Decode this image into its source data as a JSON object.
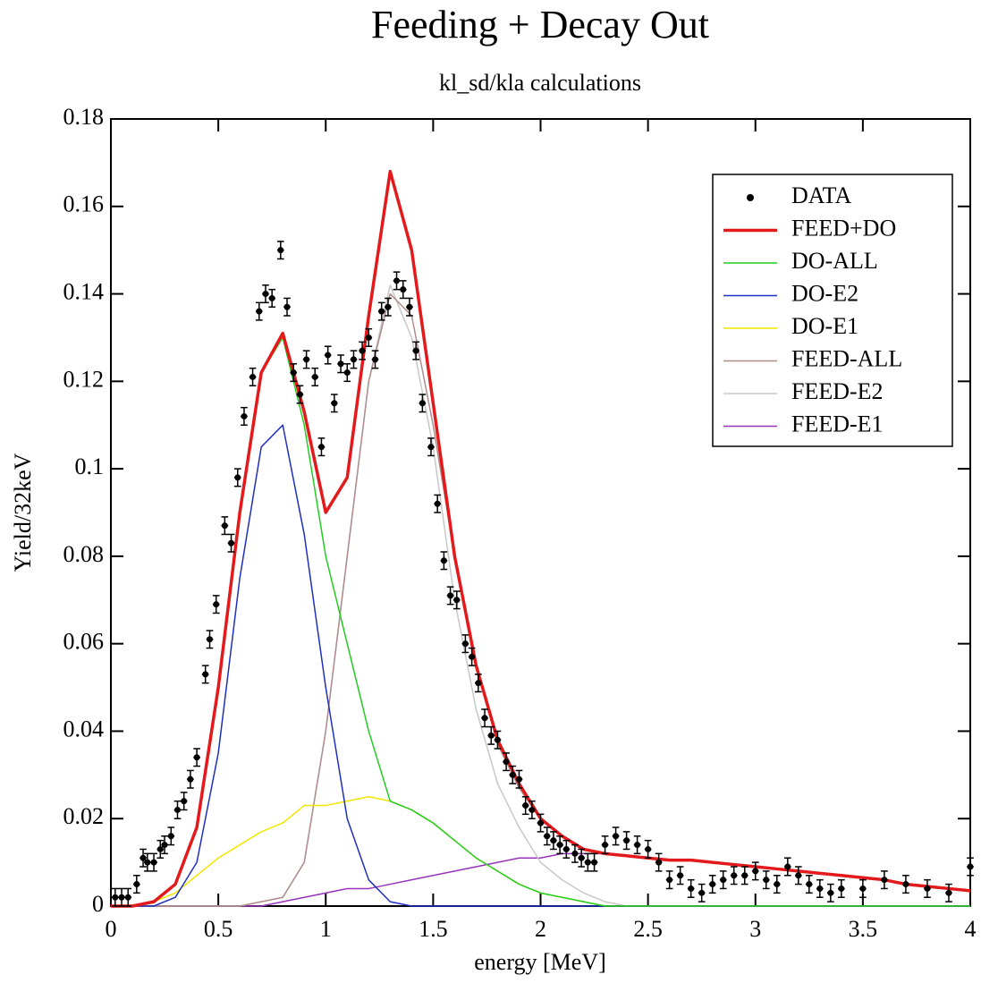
{
  "chart_data": {
    "type": "line",
    "title": "Feeding + Decay Out",
    "subtitle": "kl_sd/kla calculations",
    "xlabel": "energy [MeV]",
    "ylabel": "Yield/32keV",
    "xlim": [
      0,
      4
    ],
    "ylim": [
      0,
      0.18
    ],
    "xticks": [
      0,
      0.5,
      1,
      1.5,
      2,
      2.5,
      3,
      3.5,
      4
    ],
    "yticks": [
      0,
      0.02,
      0.04,
      0.06,
      0.08,
      0.1,
      0.12,
      0.14,
      0.16,
      0.18
    ],
    "legend": "upper right",
    "x": [
      0,
      0.1,
      0.2,
      0.3,
      0.4,
      0.5,
      0.6,
      0.7,
      0.8,
      0.9,
      1,
      1.1,
      1.2,
      1.3,
      1.4,
      1.5,
      1.6,
      1.7,
      1.8,
      1.9,
      2,
      2.1,
      2.2,
      2.3,
      2.4,
      2.5,
      2.6,
      2.7,
      2.8,
      2.9,
      3,
      3.1,
      3.2,
      3.3,
      3.4,
      3.5,
      3.6,
      3.7,
      3.8,
      3.9,
      4
    ],
    "series": [
      {
        "name": "DATA",
        "type": "scatter",
        "color": "#000000",
        "error": 0.002,
        "xerror": 0.016,
        "x": [
          0.02,
          0.05,
          0.08,
          0.12,
          0.15,
          0.17,
          0.2,
          0.23,
          0.25,
          0.28,
          0.31,
          0.34,
          0.37,
          0.4,
          0.44,
          0.46,
          0.49,
          0.53,
          0.56,
          0.59,
          0.62,
          0.66,
          0.69,
          0.72,
          0.75,
          0.79,
          0.82,
          0.85,
          0.88,
          0.91,
          0.95,
          0.98,
          1.01,
          1.04,
          1.07,
          1.1,
          1.13,
          1.17,
          1.2,
          1.23,
          1.26,
          1.29,
          1.33,
          1.36,
          1.39,
          1.42,
          1.45,
          1.49,
          1.52,
          1.55,
          1.58,
          1.61,
          1.65,
          1.68,
          1.71,
          1.74,
          1.77,
          1.8,
          1.84,
          1.87,
          1.9,
          1.93,
          1.96,
          2.0,
          2.03,
          2.06,
          2.09,
          2.12,
          2.16,
          2.19,
          2.22,
          2.25,
          2.3,
          2.35,
          2.4,
          2.45,
          2.5,
          2.55,
          2.6,
          2.65,
          2.7,
          2.75,
          2.8,
          2.85,
          2.9,
          2.95,
          3.0,
          3.05,
          3.1,
          3.15,
          3.2,
          3.25,
          3.3,
          3.35,
          3.4,
          3.5,
          3.6,
          3.7,
          3.8,
          3.9,
          4.0
        ],
        "values": [
          0.002,
          0.002,
          0.002,
          0.005,
          0.011,
          0.01,
          0.01,
          0.013,
          0.014,
          0.016,
          0.022,
          0.024,
          0.029,
          0.034,
          0.053,
          0.061,
          0.069,
          0.087,
          0.083,
          0.098,
          0.112,
          0.121,
          0.136,
          0.14,
          0.139,
          0.15,
          0.137,
          0.122,
          0.117,
          0.125,
          0.121,
          0.105,
          0.126,
          0.115,
          0.124,
          0.122,
          0.125,
          0.127,
          0.13,
          0.125,
          0.136,
          0.137,
          0.143,
          0.141,
          0.137,
          0.127,
          0.115,
          0.105,
          0.092,
          0.079,
          0.071,
          0.07,
          0.06,
          0.057,
          0.051,
          0.043,
          0.039,
          0.038,
          0.033,
          0.03,
          0.029,
          0.023,
          0.022,
          0.019,
          0.016,
          0.015,
          0.014,
          0.013,
          0.012,
          0.011,
          0.01,
          0.01,
          0.014,
          0.016,
          0.015,
          0.014,
          0.013,
          0.01,
          0.006,
          0.007,
          0.004,
          0.003,
          0.005,
          0.006,
          0.007,
          0.007,
          0.008,
          0.006,
          0.005,
          0.009,
          0.007,
          0.005,
          0.004,
          0.003,
          0.004,
          0.004,
          0.006,
          0.005,
          0.004,
          0.003,
          0.009
        ]
      },
      {
        "name": "FEED+DO",
        "color": "#e31a1c",
        "width": 3.5,
        "values": [
          0,
          0,
          0.001,
          0.005,
          0.018,
          0.05,
          0.09,
          0.122,
          0.131,
          0.113,
          0.09,
          0.098,
          0.135,
          0.168,
          0.15,
          0.115,
          0.08,
          0.055,
          0.038,
          0.028,
          0.02,
          0.016,
          0.013,
          0.012,
          0.0115,
          0.011,
          0.0105,
          0.0105,
          0.01,
          0.0095,
          0.009,
          0.0085,
          0.008,
          0.0075,
          0.007,
          0.0065,
          0.006,
          0.005,
          0.0045,
          0.004,
          0.0035
        ]
      },
      {
        "name": "DO-ALL",
        "color": "#22cc22",
        "width": 1.5,
        "values": [
          0,
          0,
          0.001,
          0.005,
          0.018,
          0.05,
          0.09,
          0.122,
          0.13,
          0.11,
          0.08,
          0.06,
          0.04,
          0.024,
          0.022,
          0.019,
          0.015,
          0.011,
          0.008,
          0.005,
          0.003,
          0.002,
          0.001,
          0,
          0,
          0,
          0,
          0,
          0,
          0,
          0,
          0,
          0,
          0,
          0,
          0,
          0,
          0,
          0,
          0,
          0
        ]
      },
      {
        "name": "DO-E2",
        "color": "#1f2fbf",
        "width": 1.5,
        "values": [
          0,
          0,
          0,
          0.002,
          0.01,
          0.035,
          0.075,
          0.105,
          0.11,
          0.085,
          0.05,
          0.02,
          0.006,
          0.001,
          0,
          0,
          0,
          0,
          0,
          0,
          0,
          0,
          0,
          0,
          0,
          0,
          0,
          0,
          0,
          0,
          0,
          0,
          0,
          0,
          0,
          0,
          0,
          0,
          0,
          0,
          0
        ]
      },
      {
        "name": "DO-E1",
        "color": "#f2e600",
        "width": 1.5,
        "values": [
          0,
          0,
          0.001,
          0.003,
          0.007,
          0.011,
          0.014,
          0.017,
          0.019,
          0.023,
          0.023,
          0.024,
          0.025,
          0.024,
          0.022,
          0.019,
          0.015,
          0.011,
          0.008,
          0.005,
          0.003,
          0.002,
          0.001,
          0,
          0,
          0,
          0,
          0,
          0,
          0,
          0,
          0,
          0,
          0,
          0,
          0,
          0,
          0,
          0,
          0,
          0
        ]
      },
      {
        "name": "FEED-ALL",
        "color": "#b08c8c",
        "width": 1.5,
        "values": [
          0,
          0,
          0,
          0,
          0,
          0,
          0,
          0.001,
          0.002,
          0.01,
          0.04,
          0.08,
          0.12,
          0.14,
          0.135,
          0.11,
          0.08,
          0.055,
          0.037,
          0.027,
          0.02,
          0.016,
          0.013,
          0.012,
          0.0115,
          0.011,
          0.0105,
          0.0105,
          0.01,
          0.0095,
          0.009,
          0.0085,
          0.008,
          0.0075,
          0.007,
          0.0065,
          0.006,
          0.005,
          0.0045,
          0.004,
          0.0035
        ]
      },
      {
        "name": "FEED-E2",
        "color": "#c8c8c8",
        "width": 1.5,
        "values": [
          0,
          0,
          0,
          0,
          0,
          0,
          0,
          0.001,
          0.002,
          0.01,
          0.04,
          0.08,
          0.12,
          0.142,
          0.13,
          0.105,
          0.07,
          0.045,
          0.028,
          0.018,
          0.01,
          0.006,
          0.003,
          0.001,
          0,
          0,
          0,
          0,
          0,
          0,
          0,
          0,
          0,
          0,
          0,
          0,
          0,
          0,
          0,
          0,
          0
        ]
      },
      {
        "name": "FEED-E1",
        "color": "#9933bb",
        "width": 1.5,
        "values": [
          0,
          0,
          0,
          0,
          0,
          0,
          0,
          0,
          0.001,
          0.002,
          0.003,
          0.004,
          0.004,
          0.005,
          0.006,
          0.007,
          0.008,
          0.009,
          0.01,
          0.011,
          0.011,
          0.012,
          0.012,
          0.012,
          0.0115,
          0.011,
          0.0105,
          0.0105,
          0.01,
          0.0095,
          0.009,
          0.0085,
          0.008,
          0.0075,
          0.007,
          0.0065,
          0.006,
          0.005,
          0.0045,
          0.004,
          0.0035
        ]
      }
    ]
  }
}
